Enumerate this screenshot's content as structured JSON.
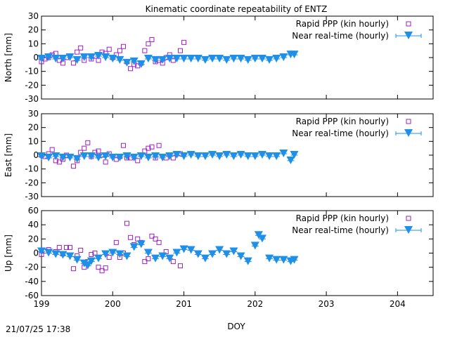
{
  "figure": {
    "title": "Kinematic coordinate repeatability of ENTZ",
    "timestamp": "21/07/25 17:38",
    "colors": {
      "ppp": "#a020c0",
      "nrt": "#1e90e8",
      "axis": "#000000"
    }
  },
  "chart_data": [
    {
      "type": "scatter",
      "ylabel": "North [mm]",
      "xlabel": "",
      "xlim": [
        199,
        204.5
      ],
      "ylim": [
        -30,
        30
      ],
      "yticks": [
        "30",
        "20",
        "10",
        "0",
        "-10",
        "-20",
        "-30"
      ],
      "xticks": [],
      "legend": "top-right",
      "grid": false,
      "series": [
        {
          "name": "Rapid PPP (kin hourly)",
          "marker": "open-square",
          "x": [
            199.0,
            199.05,
            199.1,
            199.15,
            199.2,
            199.25,
            199.3,
            199.35,
            199.45,
            199.5,
            199.55,
            199.6,
            199.7,
            199.75,
            199.8,
            199.85,
            199.9,
            199.95,
            200.0,
            200.05,
            200.1,
            200.15,
            200.2,
            200.25,
            200.3,
            200.35,
            200.4,
            200.45,
            200.5,
            200.55,
            200.6,
            200.65,
            200.7,
            200.75,
            200.8,
            200.85,
            200.95,
            201.0
          ],
          "y": [
            -3,
            -1,
            0,
            2,
            3,
            -2,
            -4,
            0,
            -4,
            4,
            7,
            -2,
            -1,
            1,
            -2,
            4,
            3,
            6,
            0,
            2,
            5,
            8,
            -3,
            -8,
            -5,
            -6,
            -4,
            5,
            10,
            13,
            -3,
            -2,
            -4,
            0,
            2,
            -2,
            5,
            11
          ]
        },
        {
          "name": "Near real-time (hourly)",
          "marker": "down-triangle",
          "x": [
            199.0,
            199.1,
            199.2,
            199.3,
            199.4,
            199.5,
            199.6,
            199.7,
            199.8,
            199.9,
            200.0,
            200.1,
            200.2,
            200.3,
            200.4,
            200.5,
            200.6,
            200.7,
            200.8,
            200.9,
            201.0,
            201.1,
            201.2,
            201.3,
            201.4,
            201.5,
            201.6,
            201.7,
            201.8,
            201.9,
            202.0,
            202.1,
            202.2,
            202.3,
            202.4,
            202.5,
            202.55
          ],
          "y": [
            -1,
            0,
            -1,
            -1,
            0,
            -2,
            0,
            0,
            1,
            0,
            -1,
            -2,
            -4,
            -3,
            -5,
            -1,
            -2,
            -2,
            -1,
            -1,
            -1,
            -1,
            -1,
            -2,
            -1,
            -1,
            -2,
            -1,
            -1,
            -2,
            -1,
            -1,
            -2,
            -1,
            0,
            2,
            2
          ]
        }
      ]
    },
    {
      "type": "scatter",
      "ylabel": "East [mm]",
      "xlabel": "",
      "xlim": [
        199,
        204.5
      ],
      "ylim": [
        -30,
        30
      ],
      "yticks": [
        "30",
        "20",
        "10",
        "0",
        "-10",
        "-20",
        "-30"
      ],
      "xticks": [],
      "legend": "top-right",
      "grid": false,
      "series": [
        {
          "name": "Rapid PPP (kin hourly)",
          "marker": "open-square",
          "x": [
            199.0,
            199.05,
            199.1,
            199.15,
            199.2,
            199.25,
            199.3,
            199.35,
            199.45,
            199.5,
            199.55,
            199.6,
            199.65,
            199.7,
            199.75,
            199.8,
            199.85,
            199.9,
            199.95,
            200.05,
            200.1,
            200.15,
            200.2,
            200.25,
            200.35,
            200.45,
            200.5,
            200.55,
            200.6,
            200.65,
            200.75,
            200.85,
            200.95
          ],
          "y": [
            0,
            -1,
            1,
            4,
            -4,
            -5,
            -3,
            0,
            -8,
            -4,
            2,
            5,
            9,
            -1,
            2,
            3,
            0,
            -5,
            1,
            -3,
            -1,
            7,
            -2,
            -2,
            -4,
            3,
            5,
            6,
            -2,
            7,
            -2,
            -2,
            1
          ]
        },
        {
          "name": "Near real-time (hourly)",
          "marker": "down-triangle",
          "x": [
            199.0,
            199.1,
            199.2,
            199.3,
            199.4,
            199.5,
            199.6,
            199.7,
            199.8,
            199.9,
            200.0,
            200.1,
            200.2,
            200.3,
            200.4,
            200.5,
            200.6,
            200.7,
            200.8,
            200.9,
            201.0,
            201.1,
            201.2,
            201.3,
            201.4,
            201.5,
            201.6,
            201.7,
            201.8,
            201.9,
            202.0,
            202.1,
            202.2,
            202.3,
            202.4,
            202.5,
            202.55
          ],
          "y": [
            -1,
            -2,
            -1,
            -2,
            -2,
            -3,
            -1,
            -1,
            -2,
            -1,
            -2,
            -2,
            -1,
            -2,
            -1,
            -2,
            -1,
            -2,
            -1,
            0,
            -1,
            0,
            -1,
            -1,
            0,
            -1,
            0,
            -1,
            0,
            -1,
            -1,
            0,
            -1,
            -1,
            1,
            -4,
            0
          ]
        }
      ]
    },
    {
      "type": "scatter",
      "ylabel": "Up [mm]",
      "xlabel": "DOY",
      "xlim": [
        199,
        204.5
      ],
      "ylim": [
        -60,
        60
      ],
      "yticks": [
        "60",
        "40",
        "20",
        "0",
        "-20",
        "-40",
        "-60"
      ],
      "xticks": [
        "199",
        "200",
        "201",
        "202",
        "203",
        "204"
      ],
      "legend": "top-right",
      "grid": false,
      "series": [
        {
          "name": "Rapid PPP (kin hourly)",
          "marker": "open-square",
          "x": [
            199.0,
            199.05,
            199.1,
            199.2,
            199.25,
            199.3,
            199.35,
            199.4,
            199.45,
            199.5,
            199.55,
            199.6,
            199.65,
            199.7,
            199.75,
            199.8,
            199.85,
            199.9,
            199.95,
            200.05,
            200.1,
            200.15,
            200.2,
            200.25,
            200.3,
            200.35,
            200.4,
            200.45,
            200.5,
            200.55,
            200.6,
            200.65,
            200.75,
            200.85,
            200.95
          ],
          "y": [
            -2,
            3,
            5,
            2,
            8,
            -1,
            8,
            8,
            -22,
            -4,
            4,
            -20,
            -12,
            -2,
            0,
            -20,
            -25,
            -21,
            -6,
            15,
            -6,
            0,
            42,
            22,
            12,
            20,
            15,
            -12,
            -8,
            24,
            20,
            15,
            2,
            -12,
            -18
          ]
        },
        {
          "name": "Near real-time (hourly)",
          "marker": "down-triangle",
          "x": [
            199.0,
            199.1,
            199.2,
            199.3,
            199.4,
            199.5,
            199.6,
            199.65,
            199.7,
            199.8,
            199.9,
            200.0,
            200.1,
            200.2,
            200.3,
            200.4,
            200.5,
            200.6,
            200.7,
            200.8,
            200.9,
            201.0,
            201.1,
            201.2,
            201.3,
            201.4,
            201.5,
            201.6,
            201.7,
            201.8,
            201.9,
            202.0,
            202.05,
            202.1,
            202.2,
            202.3,
            202.4,
            202.5,
            202.55
          ],
          "y": [
            2,
            0,
            -2,
            -3,
            -5,
            -10,
            -15,
            -18,
            -12,
            -8,
            -2,
            0,
            -2,
            -5,
            8,
            12,
            0,
            -8,
            -5,
            -8,
            0,
            5,
            4,
            -2,
            -8,
            -2,
            4,
            -2,
            2,
            -5,
            -12,
            10,
            25,
            20,
            -8,
            -10,
            -10,
            -12,
            -10
          ]
        }
      ]
    }
  ]
}
